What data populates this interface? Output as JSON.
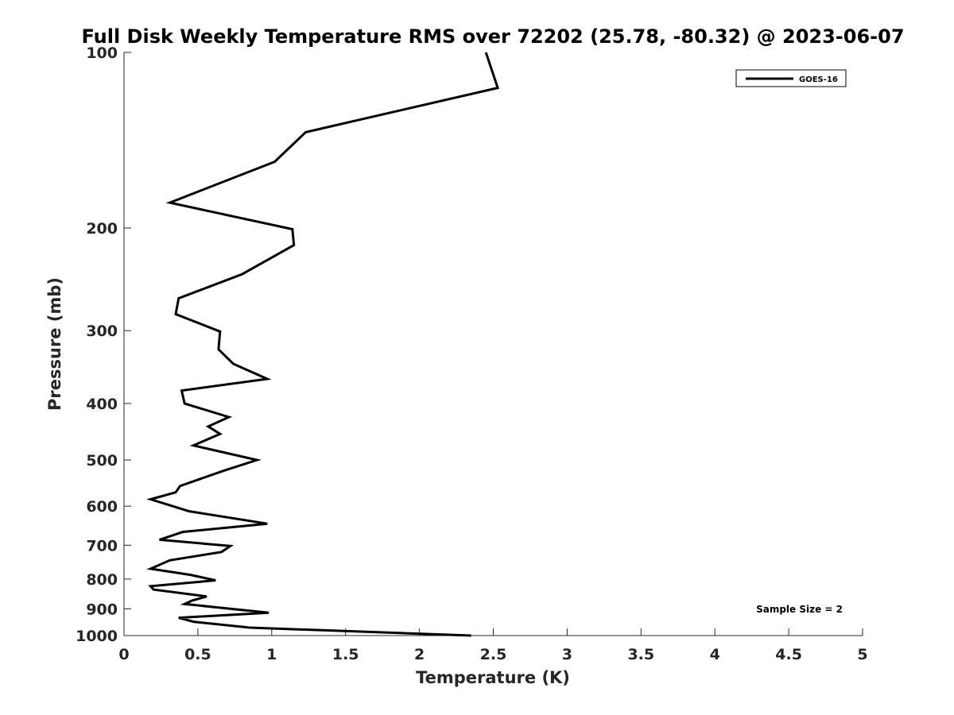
{
  "chart_data": {
    "type": "line",
    "title": "Full Disk Weekly Temperature RMS over 72202 (25.78, -80.32) @ 2023-06-07",
    "xlabel": "Temperature (K)",
    "ylabel": "Pressure (mb)",
    "xlim": [
      0,
      5
    ],
    "ylim": [
      1000,
      100
    ],
    "yscale": "log",
    "y_reversed": true,
    "xticks": [
      "0",
      "0.5",
      "1",
      "1.5",
      "2",
      "2.5",
      "3",
      "3.5",
      "4",
      "4.5",
      "5"
    ],
    "yticks": [
      "100",
      "200",
      "300",
      "400",
      "500",
      "600",
      "700",
      "800",
      "900",
      "1000"
    ],
    "grid": false,
    "legend_position": "top-right",
    "annotation": "Sample Size = 2",
    "series": [
      {
        "name": "GOES-16",
        "color": "#000000",
        "points": [
          [
            2.45,
            100
          ],
          [
            2.53,
            115
          ],
          [
            1.23,
            137
          ],
          [
            1.02,
            154
          ],
          [
            0.31,
            181
          ],
          [
            1.14,
            201
          ],
          [
            1.15,
            214
          ],
          [
            0.8,
            240
          ],
          [
            0.37,
            264
          ],
          [
            0.35,
            281
          ],
          [
            0.65,
            301
          ],
          [
            0.64,
            323
          ],
          [
            0.74,
            342
          ],
          [
            0.97,
            363
          ],
          [
            0.39,
            380
          ],
          [
            0.41,
            400
          ],
          [
            0.71,
            422
          ],
          [
            0.57,
            438
          ],
          [
            0.65,
            451
          ],
          [
            0.47,
            472
          ],
          [
            0.9,
            500
          ],
          [
            0.67,
            522
          ],
          [
            0.38,
            554
          ],
          [
            0.35,
            568
          ],
          [
            0.18,
            584
          ],
          [
            0.44,
            612
          ],
          [
            0.97,
            643
          ],
          [
            0.4,
            664
          ],
          [
            0.24,
            685
          ],
          [
            0.72,
            702
          ],
          [
            0.66,
            719
          ],
          [
            0.31,
            743
          ],
          [
            0.18,
            768
          ],
          [
            0.45,
            787
          ],
          [
            0.62,
            804
          ],
          [
            0.18,
            823
          ],
          [
            0.2,
            834
          ],
          [
            0.56,
            857
          ],
          [
            0.46,
            871
          ],
          [
            0.41,
            883
          ],
          [
            0.98,
            914
          ],
          [
            0.37,
            932
          ],
          [
            0.47,
            947
          ],
          [
            0.85,
            969
          ],
          [
            2.35,
            1000
          ]
        ]
      }
    ]
  }
}
